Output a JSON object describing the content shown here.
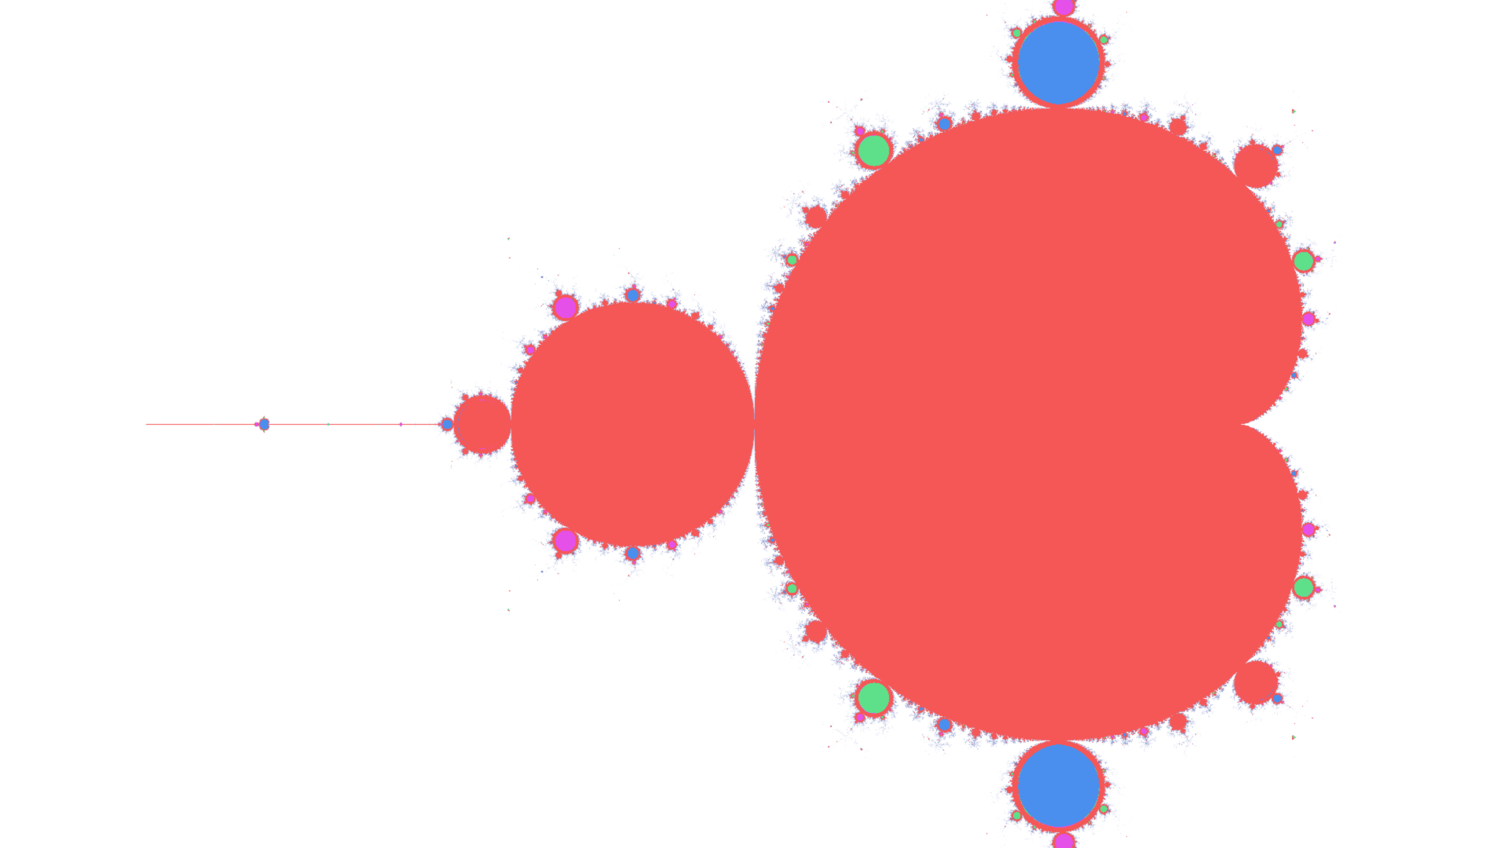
{
  "view": {
    "subject": "mandelbrot-set",
    "center_re": -0.75,
    "center_im": 0.0,
    "re_span": 3.1,
    "max_iterations": 60
  },
  "colors": {
    "background": "#ffffff",
    "period_1_main_cardioid": "#f55757",
    "period_2_bulb": "#f55757",
    "period_3_bulbs": "#4a8fed",
    "period_4_bulbs": "#f55757",
    "period_5_bulbs": "#5ee08a",
    "period_6_bulbs": "#e550e8",
    "period_7_plus_bulbs": "#f55757",
    "boundary_escape_tint": "#9aa7d6"
  },
  "palette_cycle": [
    "#f55757",
    "#f55757",
    "#4a8fed",
    "#f55757",
    "#5ee08a",
    "#e550e8",
    "#f55757",
    "#4a8fed",
    "#5ee08a",
    "#e550e8"
  ]
}
